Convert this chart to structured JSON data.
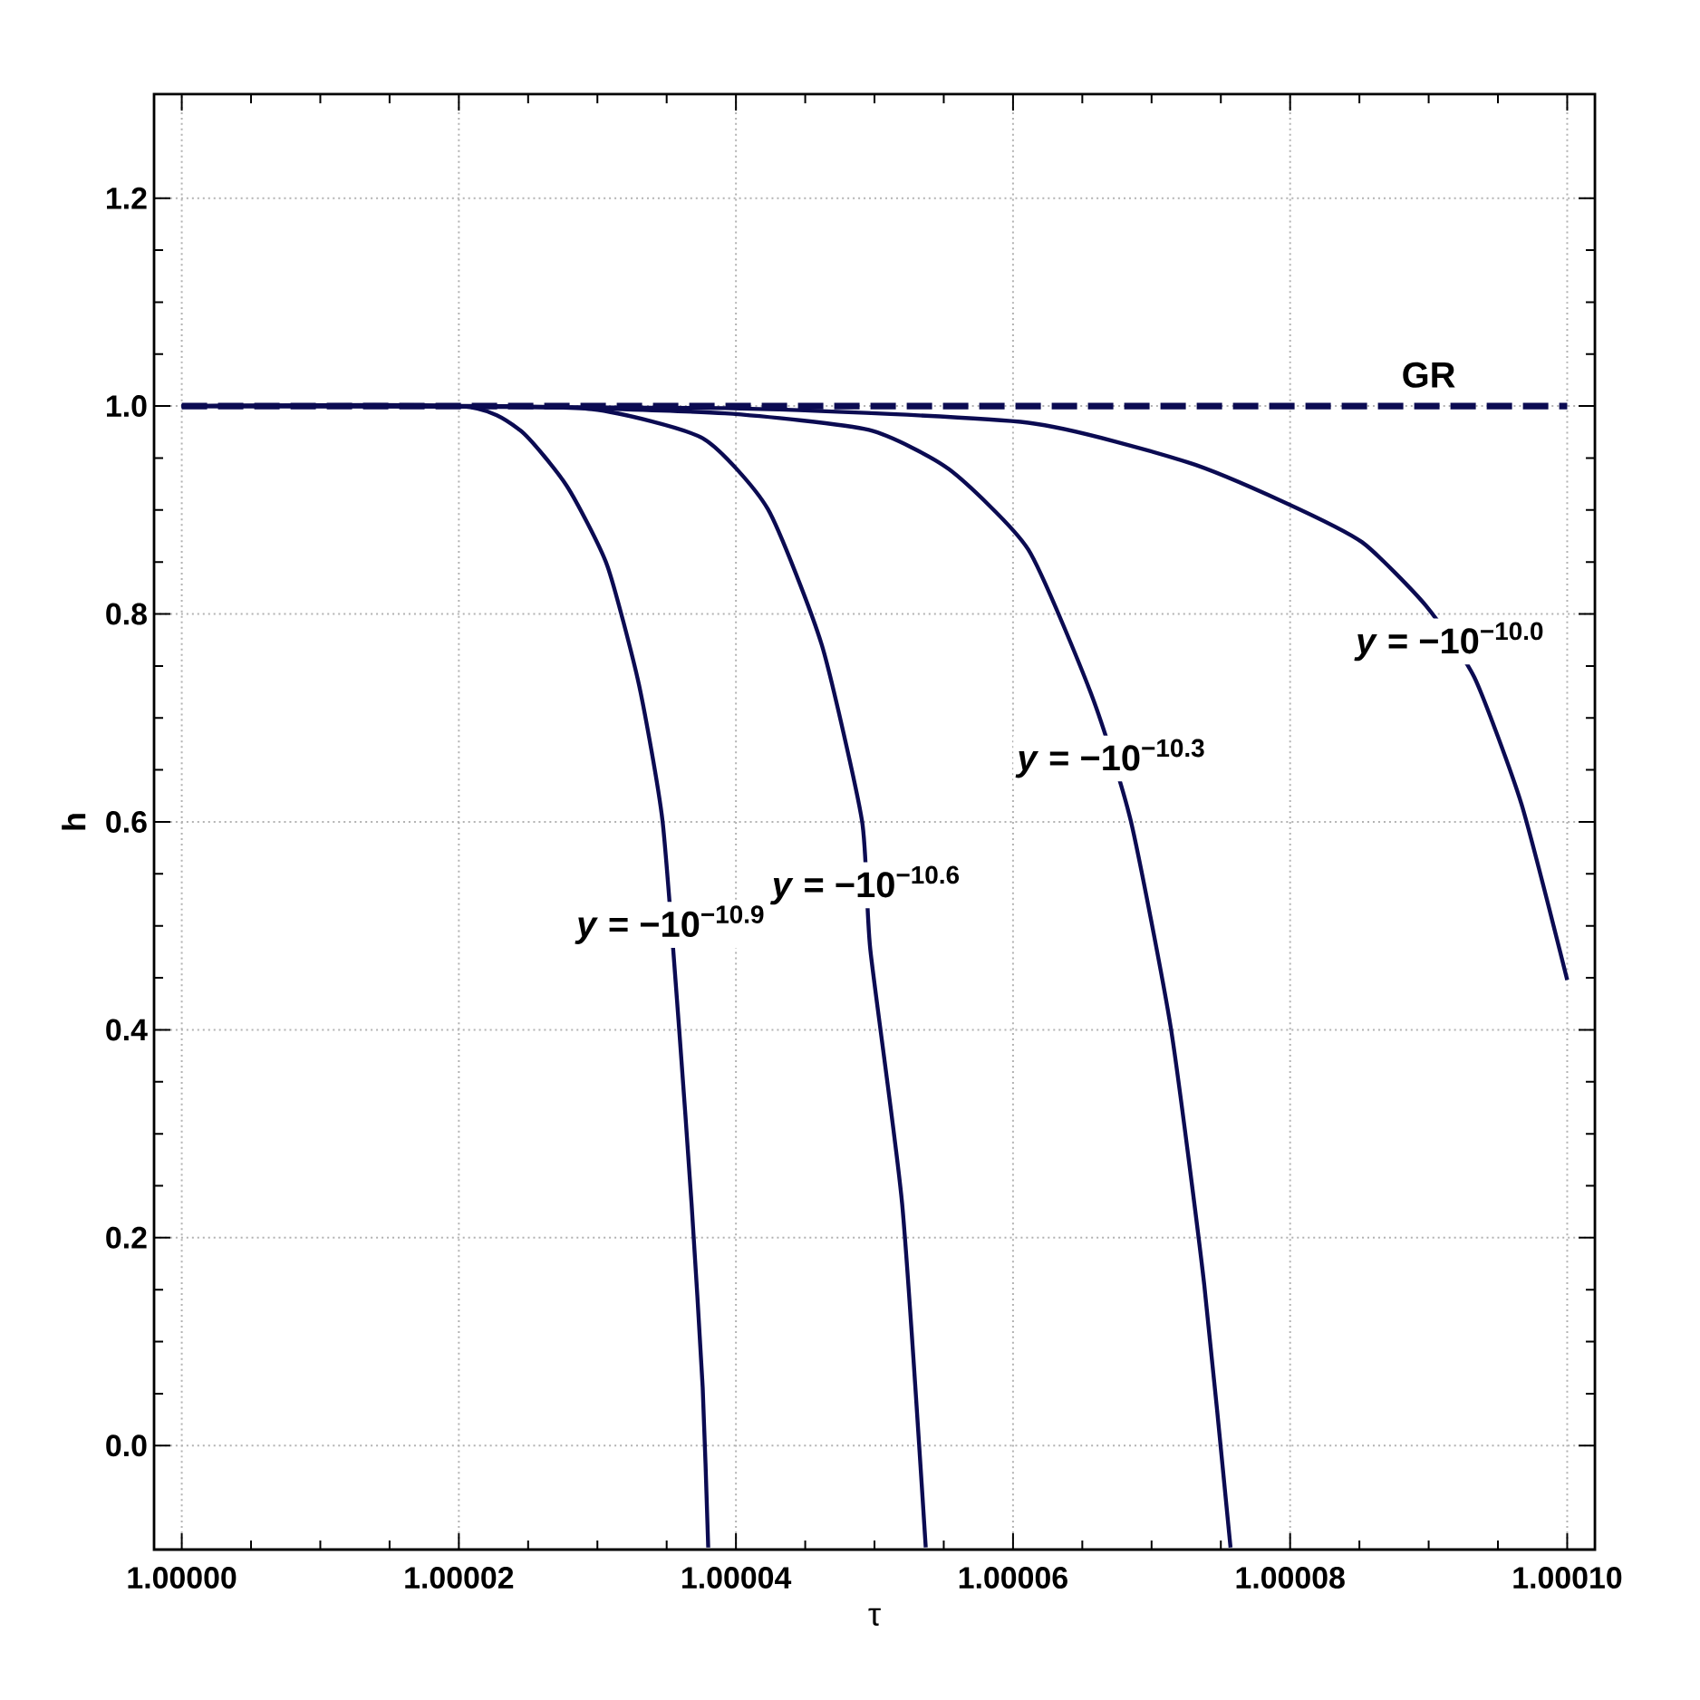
{
  "chart_data": {
    "type": "line",
    "xlabel": "τ",
    "ylabel": "h",
    "xlim": [
      0.999998,
      1.000102
    ],
    "ylim": [
      -0.1,
      1.3
    ],
    "xticks": [
      {
        "value": 1.0,
        "label": "1.00000"
      },
      {
        "value": 1.00002,
        "label": "1.00002"
      },
      {
        "value": 1.00004,
        "label": "1.00004"
      },
      {
        "value": 1.00006,
        "label": "1.00006"
      },
      {
        "value": 1.00008,
        "label": "1.00008"
      },
      {
        "value": 1.0001,
        "label": "1.00010"
      }
    ],
    "yticks": [
      {
        "value": 0,
        "label": "0.0"
      },
      {
        "value": 0.2,
        "label": "0.2"
      },
      {
        "value": 0.4,
        "label": "0.4"
      },
      {
        "value": 0.6,
        "label": "0.6"
      },
      {
        "value": 0.8,
        "label": "0.8"
      },
      {
        "value": 1.0,
        "label": "1.0"
      },
      {
        "value": 1.2,
        "label": "1.2"
      }
    ],
    "grid": true,
    "marker": "none",
    "series": [
      {
        "name": "*y* = −10$^{−10.9}$",
        "color": "#0b0b52",
        "line_style": "solid",
        "x": [
          1.0,
          1.0000201,
          1.0000244,
          1.0000278,
          1.0000307,
          1.000033,
          1.0000347,
          1.0000359,
          1.0000368,
          1.0000376,
          1.000038
        ],
        "values": [
          1.0,
          1.0,
          0.977,
          0.923,
          0.847,
          0.732,
          0.601,
          0.401,
          0.232,
          0.056,
          -0.098
        ]
      },
      {
        "name": "*y* = −10$^{−10.6}$",
        "color": "#0b0b52",
        "line_style": "solid",
        "x": [
          1.0,
          1.000017,
          1.0000296,
          1.0000376,
          1.0000423,
          1.0000462,
          1.0000491,
          1.0000497,
          1.000052,
          1.0000537
        ],
        "values": [
          1.0,
          1.0,
          0.997,
          0.969,
          0.901,
          0.77,
          0.601,
          0.477,
          0.232,
          -0.098
        ]
      },
      {
        "name": "*y* = −10$^{−10.3}$",
        "color": "#0b0b52",
        "line_style": "solid",
        "x": [
          1.0,
          1.0000235,
          1.0000392,
          1.0000496,
          1.0000554,
          1.0000611,
          1.0000657,
          1.0000685,
          1.0000714,
          1.0000738,
          1.0000757
        ],
        "values": [
          1.0,
          1.0,
          0.993,
          0.977,
          0.939,
          0.862,
          0.721,
          0.601,
          0.401,
          0.155,
          -0.098
        ]
      },
      {
        "name": "*y* = −10$^{−10.0}$",
        "color": "#0b0b52",
        "line_style": "solid",
        "x": [
          1.0,
          1.0000392,
          1.0000611,
          1.0000726,
          1.0000795,
          1.0000852,
          1.0000898,
          1.0000933,
          1.0000967,
          1.0001
        ],
        "values": [
          1.0,
          0.998,
          0.984,
          0.946,
          0.908,
          0.869,
          0.808,
          0.739,
          0.617,
          0.448
        ]
      },
      {
        "name": "GR",
        "color": "#0b0b52",
        "line_style": "dashed",
        "x": [
          1.0,
          1.0001
        ],
        "values": [
          1.0,
          1.0
        ]
      }
    ]
  }
}
